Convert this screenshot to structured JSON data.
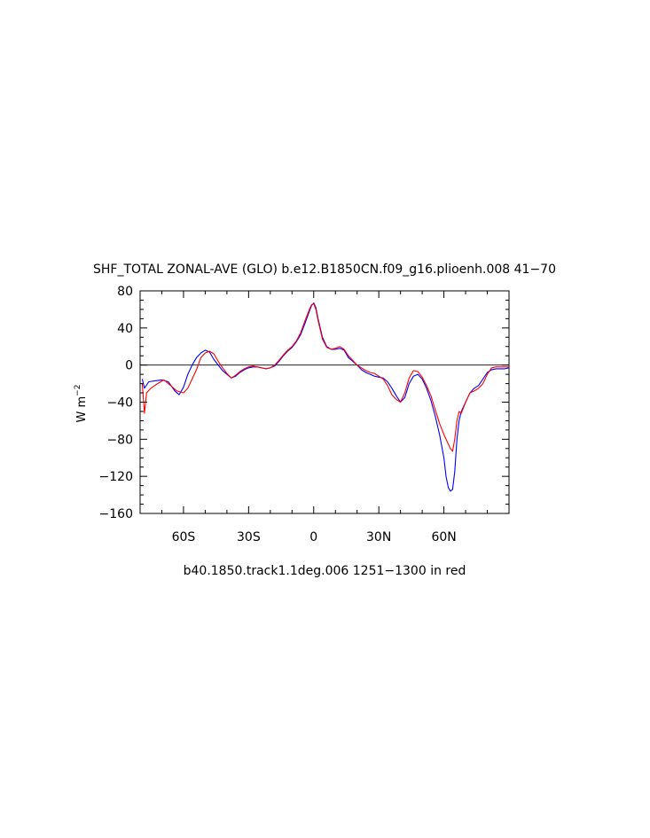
{
  "chart_data": {
    "type": "line",
    "title": "SHF_TOTAL ZONAL-AVE (GLO) b.e12.B1850CN.f09_g16.plioenh.008 ​41−70​",
    "xlabel": "b40.1850.track1.1deg.006 ​1251−1300​ in red",
    "ylabel": "W m⁻²",
    "ylabel_base": "W m",
    "ylabel_sup": "−2",
    "xlim": [
      -80,
      90
    ],
    "ylim": [
      -160,
      80
    ],
    "x_ticks": [
      -60,
      -30,
      0,
      30,
      60
    ],
    "x_tick_labels": [
      "60S",
      "30S",
      "0",
      "30N",
      "60N"
    ],
    "y_ticks": [
      80,
      40,
      0,
      -40,
      -80,
      -120,
      -160
    ],
    "y_tick_labels": [
      "80",
      "40",
      "0",
      "−40",
      "−80",
      "−120",
      "−160"
    ],
    "zero_line": true,
    "series": [
      {
        "color": "#0000ff",
        "x": [
          -79,
          -78,
          -76,
          -73,
          -70,
          -67,
          -64,
          -62,
          -60,
          -58,
          -56,
          -54,
          -52,
          -50,
          -48,
          -46,
          -44,
          -42,
          -40,
          -38,
          -36,
          -34,
          -32,
          -30,
          -28,
          -26,
          -24,
          -22,
          -20,
          -18,
          -16,
          -14,
          -12,
          -10,
          -8,
          -6,
          -4,
          -2,
          -1,
          0,
          1,
          2,
          4,
          6,
          8,
          10,
          12,
          14,
          16,
          18,
          20,
          22,
          24,
          26,
          28,
          30,
          32,
          34,
          36,
          38,
          40,
          42,
          44,
          46,
          48,
          50,
          52,
          54,
          56,
          58,
          60,
          61,
          62,
          63,
          64,
          65,
          66,
          67,
          68,
          70,
          72,
          74,
          76,
          78,
          80,
          82,
          84,
          86,
          88,
          90
        ],
        "y": [
          -15,
          -25,
          -18,
          -17,
          -16,
          -18,
          -28,
          -32,
          -24,
          -10,
          0,
          8,
          13,
          16,
          14,
          6,
          0,
          -6,
          -10,
          -14,
          -12,
          -8,
          -5,
          -3,
          -2,
          -2,
          -3,
          -4,
          -3,
          -1,
          4,
          10,
          15,
          19,
          25,
          33,
          45,
          58,
          64,
          67,
          62,
          50,
          30,
          20,
          17,
          17,
          18,
          16,
          8,
          4,
          0,
          -5,
          -8,
          -10,
          -12,
          -13,
          -14,
          -18,
          -25,
          -33,
          -40,
          -35,
          -20,
          -12,
          -10,
          -15,
          -25,
          -38,
          -55,
          -75,
          -100,
          -120,
          -132,
          -136,
          -134,
          -115,
          -80,
          -60,
          -50,
          -40,
          -30,
          -25,
          -22,
          -15,
          -8,
          -5,
          -4,
          -4,
          -4,
          -3
        ]
      },
      {
        "color": "#ff0000",
        "x": [
          -79,
          -78,
          -77,
          -75,
          -72,
          -69,
          -66,
          -63,
          -60,
          -58,
          -56,
          -54,
          -52,
          -50,
          -48,
          -46,
          -44,
          -42,
          -40,
          -38,
          -36,
          -34,
          -32,
          -30,
          -28,
          -26,
          -24,
          -22,
          -20,
          -18,
          -16,
          -14,
          -12,
          -10,
          -8,
          -6,
          -4,
          -2,
          -1,
          0,
          1,
          2,
          4,
          6,
          8,
          10,
          12,
          14,
          16,
          18,
          20,
          22,
          24,
          26,
          28,
          30,
          32,
          34,
          36,
          38,
          40,
          42,
          44,
          46,
          48,
          50,
          52,
          54,
          56,
          58,
          60,
          62,
          63,
          64,
          65,
          66,
          67,
          68,
          70,
          72,
          74,
          76,
          78,
          80,
          82,
          84,
          86,
          88,
          90
        ],
        "y": [
          -20,
          -52,
          -30,
          -25,
          -20,
          -16,
          -22,
          -28,
          -30,
          -25,
          -15,
          -5,
          8,
          13,
          15,
          12,
          4,
          -3,
          -9,
          -14,
          -11,
          -7,
          -4,
          -2,
          -1,
          -2,
          -3,
          -4,
          -3,
          0,
          5,
          11,
          16,
          20,
          26,
          35,
          48,
          60,
          65,
          66,
          60,
          48,
          28,
          19,
          17,
          18,
          20,
          17,
          10,
          5,
          0,
          -3,
          -6,
          -8,
          -9,
          -12,
          -15,
          -22,
          -32,
          -37,
          -40,
          -30,
          -14,
          -6,
          -7,
          -13,
          -22,
          -33,
          -48,
          -63,
          -75,
          -85,
          -90,
          -93,
          -80,
          -60,
          -50,
          -52,
          -40,
          -30,
          -28,
          -25,
          -20,
          -10,
          -3,
          -2,
          -2,
          -2,
          -2
        ]
      }
    ]
  }
}
